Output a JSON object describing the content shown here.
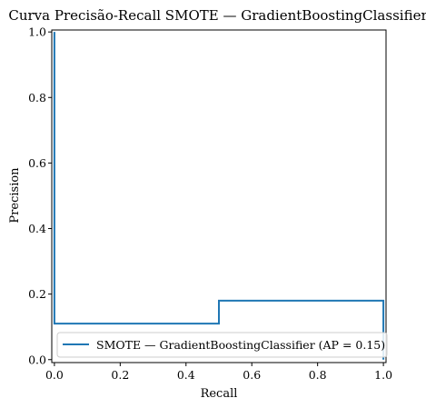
{
  "chart_data": {
    "type": "line",
    "title": "Curva Precisão-Recall SMOTE — GradientBoostingClassifier",
    "xlabel": "Recall",
    "ylabel": "Precision",
    "xlim": [
      0,
      1
    ],
    "ylim": [
      0,
      1
    ],
    "xticks": [
      "0.0",
      "0.2",
      "0.4",
      "0.6",
      "0.8",
      "1.0"
    ],
    "yticks": [
      "0.0",
      "0.2",
      "0.4",
      "0.6",
      "0.8",
      "1.0"
    ],
    "grid": false,
    "legend_position": "lower-right",
    "series": [
      {
        "name": "SMOTE — GradientBoostingClassifier (AP = 0.15)",
        "color": "#1f77b4",
        "drawstyle": "steps-post",
        "points": [
          {
            "recall": 1.0,
            "precision": 0.0
          },
          {
            "recall": 1.0,
            "precision": 0.18
          },
          {
            "recall": 0.5,
            "precision": 0.18
          },
          {
            "recall": 0.5,
            "precision": 0.11
          },
          {
            "recall": 0.0,
            "precision": 0.11
          },
          {
            "recall": 0.0,
            "precision": 1.0
          }
        ]
      }
    ]
  }
}
